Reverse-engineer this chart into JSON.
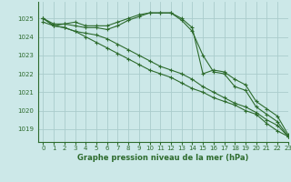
{
  "title": "Graphe pression niveau de la mer (hPa)",
  "bg_color": "#cce8e8",
  "grid_color": "#aacccc",
  "line_color": "#2d6b2d",
  "marker_color": "#2d6b2d",
  "xlim": [
    -0.5,
    23
  ],
  "ylim": [
    1018.3,
    1025.9
  ],
  "yticks": [
    1019,
    1020,
    1021,
    1022,
    1023,
    1024,
    1025
  ],
  "xtick_labels": [
    "0",
    "1",
    "2",
    "3",
    "4",
    "5",
    "6",
    "7",
    "8",
    "9",
    "10",
    "11",
    "12",
    "13",
    "14",
    "15",
    "16",
    "17",
    "18",
    "19",
    "20",
    "21",
    "22",
    "23"
  ],
  "series": [
    [
      1025.0,
      1024.7,
      1024.7,
      1024.8,
      1024.6,
      1024.6,
      1024.6,
      1024.8,
      1025.0,
      1025.2,
      1025.3,
      1025.3,
      1025.3,
      1025.0,
      1024.5,
      1022.0,
      1022.2,
      1022.1,
      1021.7,
      1021.4,
      1020.5,
      1020.1,
      1019.7,
      1018.7
    ],
    [
      1024.8,
      1024.6,
      1024.7,
      1024.6,
      1024.5,
      1024.5,
      1024.4,
      1024.6,
      1024.9,
      1025.1,
      1025.3,
      1025.3,
      1025.3,
      1024.9,
      1024.3,
      1023.0,
      1022.1,
      1022.0,
      1021.3,
      1021.1,
      1020.2,
      1019.8,
      1019.4,
      1018.6
    ],
    [
      1025.0,
      1024.6,
      1024.5,
      1024.3,
      1024.2,
      1024.1,
      1023.9,
      1023.6,
      1023.3,
      1023.0,
      1022.7,
      1022.4,
      1022.2,
      1022.0,
      1021.7,
      1021.3,
      1021.0,
      1020.7,
      1020.4,
      1020.2,
      1019.9,
      1019.5,
      1019.2,
      1018.6
    ],
    [
      1025.0,
      1024.6,
      1024.5,
      1024.3,
      1024.0,
      1023.7,
      1023.4,
      1023.1,
      1022.8,
      1022.5,
      1022.2,
      1022.0,
      1021.8,
      1021.5,
      1021.2,
      1021.0,
      1020.7,
      1020.5,
      1020.3,
      1020.0,
      1019.8,
      1019.3,
      1018.9,
      1018.6
    ]
  ]
}
